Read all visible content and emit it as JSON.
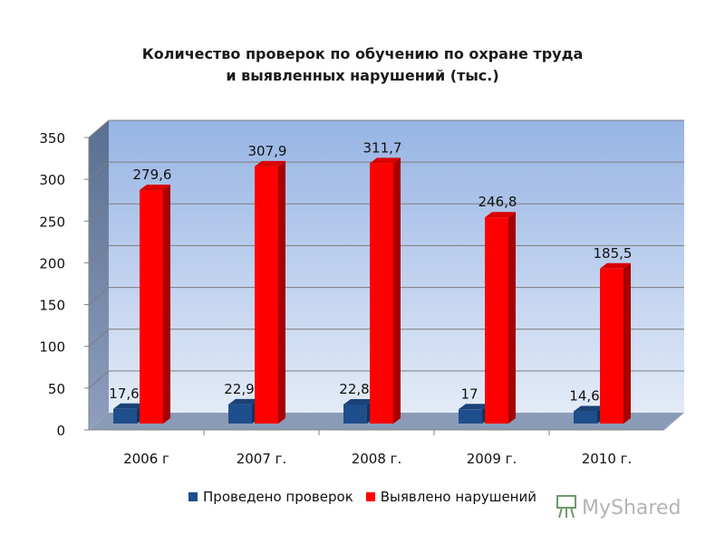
{
  "chart_data": {
    "type": "bar",
    "title_line1": "Количество проверок по обучению по охране труда",
    "title_line2": "и выявленных нарушений (тыс.)",
    "categories": [
      "2006 г",
      "2007 г.",
      "2008 г.",
      "2009 г.",
      "2010 г."
    ],
    "series": [
      {
        "name": "Проведено проверок",
        "values": [
          17.6,
          22.9,
          22.8,
          17,
          14.6
        ],
        "labels": [
          "17,6",
          "22,9",
          "22,8",
          "17",
          "14,6"
        ],
        "color": "#1f4e8c"
      },
      {
        "name": "Выявлено нарушений",
        "values": [
          279.6,
          307.9,
          311.7,
          246.8,
          185.5
        ],
        "labels": [
          "279,6",
          "307,9",
          "311,7",
          "246,8",
          "185,5"
        ],
        "color": "#ff0000"
      }
    ],
    "y_ticks": [
      "0",
      "50",
      "100",
      "150",
      "200",
      "250",
      "300",
      "350"
    ],
    "ylim": [
      0,
      350
    ],
    "grid": true,
    "legend_position": "bottom",
    "style": "3d-column"
  },
  "watermark": {
    "text": "MyShared"
  }
}
